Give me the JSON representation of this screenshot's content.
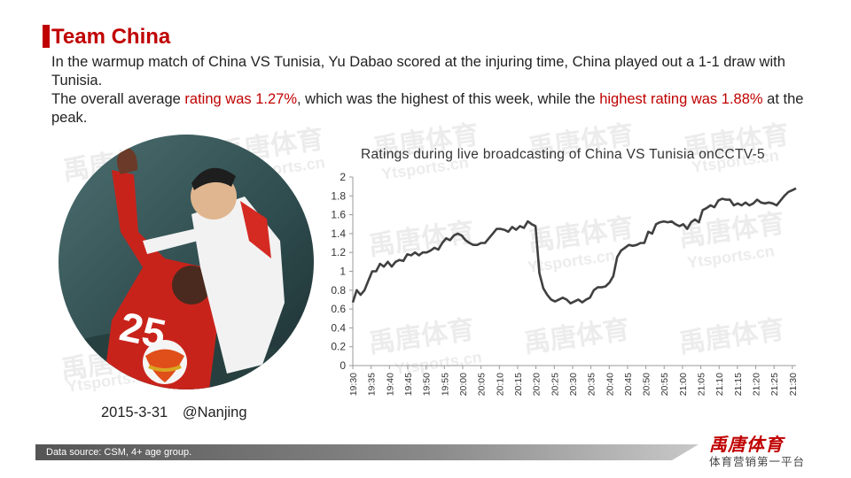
{
  "header": {
    "title": "Team China",
    "line1": "In the warmup match of China VS Tunisia, Yu Dabao scored at the injuring time, China played out a 1-1 draw with Tunisia.",
    "line2_a": "The overall average ",
    "line2_b": "rating was 1.27%",
    "line2_c": ", which was the highest of this week, while the ",
    "line2_d": "highest rating was 1.88%",
    "line2_e": " at the peak."
  },
  "watermark": {
    "cn": "禹唐体育",
    "en": "Ytsports.cn"
  },
  "caption": {
    "date": "2015-3-31",
    "place": "@Nanjing"
  },
  "footer": {
    "source": "Data source: CSM, 4+ age group.",
    "logo": "禹唐体育",
    "slogan": "体育营销第一平台"
  },
  "colors": {
    "accent": "#c00000",
    "line": "#404040"
  },
  "chart_data": {
    "type": "line",
    "title": "Ratings during live broadcasting of China VS Tunisia onCCTV-5",
    "ylim": [
      0,
      2
    ],
    "yticks": [
      0,
      0.2,
      0.4,
      0.6,
      0.8,
      1,
      1.2,
      1.4,
      1.6,
      1.8,
      2
    ],
    "xtick_labels": [
      "19:30",
      "19:35",
      "19:40",
      "19:45",
      "19:50",
      "19:55",
      "20:00",
      "20:05",
      "20:10",
      "20:15",
      "20:20",
      "20:25",
      "20:30",
      "20:35",
      "20:40",
      "20:45",
      "20:50",
      "20:55",
      "21:00",
      "21:05",
      "21:10",
      "21:15",
      "21:20",
      "21:25",
      "21:30"
    ],
    "x_start": "19:30",
    "x_end": "21:31",
    "values": [
      0.67,
      0.8,
      0.75,
      0.8,
      0.9,
      1.0,
      1.0,
      1.08,
      1.05,
      1.1,
      1.05,
      1.1,
      1.12,
      1.11,
      1.18,
      1.17,
      1.2,
      1.17,
      1.2,
      1.2,
      1.22,
      1.25,
      1.23,
      1.3,
      1.35,
      1.33,
      1.38,
      1.4,
      1.38,
      1.33,
      1.3,
      1.28,
      1.28,
      1.3,
      1.3,
      1.35,
      1.4,
      1.45,
      1.45,
      1.44,
      1.42,
      1.47,
      1.44,
      1.48,
      1.46,
      1.53,
      1.5,
      1.48,
      0.98,
      0.82,
      0.75,
      0.7,
      0.68,
      0.7,
      0.72,
      0.7,
      0.66,
      0.68,
      0.7,
      0.67,
      0.7,
      0.72,
      0.8,
      0.83,
      0.83,
      0.84,
      0.88,
      0.95,
      1.15,
      1.22,
      1.25,
      1.28,
      1.27,
      1.28,
      1.3,
      1.3,
      1.42,
      1.4,
      1.5,
      1.52,
      1.53,
      1.52,
      1.53,
      1.5,
      1.48,
      1.5,
      1.45,
      1.52,
      1.55,
      1.52,
      1.65,
      1.67,
      1.7,
      1.68,
      1.75,
      1.77,
      1.76,
      1.76,
      1.7,
      1.72,
      1.7,
      1.73,
      1.7,
      1.72,
      1.76,
      1.73,
      1.72,
      1.73,
      1.72,
      1.7,
      1.75,
      1.8,
      1.84,
      1.86,
      1.88
    ],
    "xlabel": "",
    "ylabel": ""
  }
}
